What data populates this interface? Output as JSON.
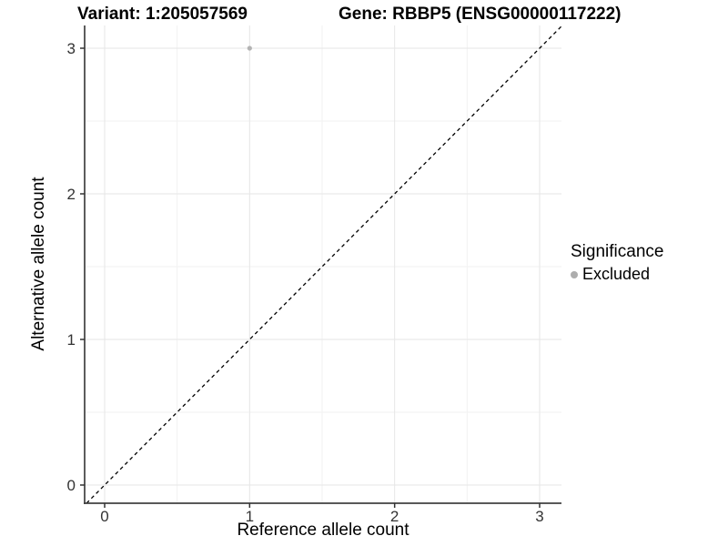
{
  "titles": {
    "left": "Variant: 1:205057569",
    "right": "Gene: RBBP5 (ENSG00000117222)"
  },
  "chart_data": {
    "type": "scatter",
    "title_left": "Variant: 1:205057569",
    "title_right": "Gene: RBBP5 (ENSG00000117222)",
    "xlabel": "Reference allele count",
    "ylabel": "Alternative allele count",
    "xlim": [
      -0.138,
      3.151
    ],
    "ylim": [
      -0.125,
      3.156
    ],
    "xticks": [
      0,
      1,
      2,
      3
    ],
    "yticks": [
      0,
      1,
      2,
      3
    ],
    "minor_gridlines_x": [
      0.5,
      1.5,
      2.5
    ],
    "minor_gridlines_y": [
      0.5,
      1.5,
      2.5
    ],
    "grid": "major+minor",
    "points": [
      {
        "x": 1,
        "y": 3,
        "series": "Excluded"
      }
    ],
    "identity_line": {
      "slope": 1,
      "intercept": 0,
      "style": "dashed",
      "color": "#000000"
    },
    "legend": {
      "title": "Significance",
      "position": "right",
      "items": [
        {
          "label": "Excluded",
          "color": "#adadad",
          "marker": "circle"
        }
      ]
    }
  },
  "colors": {
    "background": "#ffffff",
    "grid_major": "#e6e6e6",
    "grid_minor": "#f2f2f2",
    "axis_line": "#404040",
    "tick_mark": "#333333",
    "tick_label": "#333333",
    "point": "#b3b3b3",
    "identity_line": "#000000",
    "text": "#000000"
  }
}
